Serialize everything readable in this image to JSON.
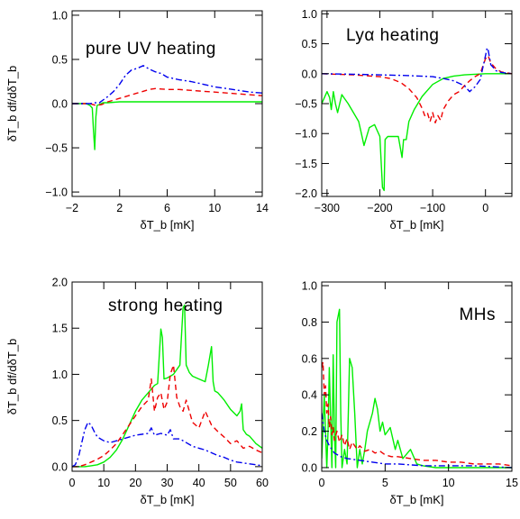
{
  "colors": {
    "green": "#00ee00",
    "red": "#ee0000",
    "blue": "#0000ee",
    "axis": "#000000"
  },
  "chart_data": [
    {
      "type": "line",
      "title": "pure UV heating",
      "xlabel": "δT_b [mK]",
      "ylabel": "δT_b df/dδT_b",
      "xlim": [
        -2,
        14
      ],
      "ylim": [
        -1.05,
        1.05
      ],
      "xticks": [
        -2,
        2,
        6,
        10,
        14
      ],
      "xtick_labels": [
        "−2",
        "2",
        "6",
        "10",
        "14"
      ],
      "yticks": [
        -1.0,
        -0.5,
        0.0,
        0.5,
        1.0
      ],
      "ytick_labels": [
        "−1.0",
        "−0.5",
        "0.0",
        "0.5",
        "1.0"
      ],
      "series": [
        {
          "color": "green",
          "style": "solid",
          "x": [
            -2,
            -0.8,
            -0.5,
            -0.3,
            -0.2,
            -0.1,
            0,
            0.1,
            0.3,
            0.6,
            1,
            2,
            4,
            8,
            14
          ],
          "y": [
            0,
            0,
            -0.02,
            -0.05,
            -0.3,
            -0.52,
            -0.15,
            -0.02,
            -0.01,
            0.01,
            0.01,
            0.02,
            0.02,
            0.02,
            0.02
          ]
        },
        {
          "color": "red",
          "style": "dashed",
          "x": [
            -2,
            -0.5,
            0,
            0.5,
            1,
            1.5,
            2,
            2.5,
            3,
            3.5,
            4,
            4.5,
            5,
            6,
            7,
            8,
            9,
            10,
            11,
            12,
            13,
            14
          ],
          "y": [
            0,
            0,
            -0.02,
            -0.01,
            0.02,
            0.04,
            0.06,
            0.08,
            0.1,
            0.12,
            0.14,
            0.16,
            0.17,
            0.16,
            0.16,
            0.15,
            0.14,
            0.13,
            0.12,
            0.11,
            0.1,
            0.09
          ]
        },
        {
          "color": "blue",
          "style": "dashdot",
          "x": [
            -2,
            -0.5,
            0,
            0.3,
            0.6,
            1,
            1.5,
            2,
            2.5,
            3,
            3.5,
            4,
            4.5,
            5,
            5.5,
            6,
            7,
            8,
            9,
            10,
            11,
            12,
            13,
            14
          ],
          "y": [
            0,
            0,
            0.01,
            0.01,
            0.04,
            0.08,
            0.14,
            0.22,
            0.32,
            0.38,
            0.4,
            0.43,
            0.39,
            0.36,
            0.34,
            0.3,
            0.27,
            0.25,
            0.22,
            0.19,
            0.17,
            0.15,
            0.13,
            0.12
          ]
        }
      ]
    },
    {
      "type": "line",
      "title": "Lyα heating",
      "xlabel": "δT_b [mK]",
      "ylabel": "",
      "xlim": [
        -310,
        50
      ],
      "ylim": [
        -2.05,
        1.05
      ],
      "xticks": [
        -300,
        -200,
        -100,
        0
      ],
      "xtick_labels": [
        "−300",
        "−200",
        "−100",
        "0"
      ],
      "yticks": [
        -2.0,
        -1.5,
        -1.0,
        -0.5,
        0.0,
        0.5,
        1.0
      ],
      "ytick_labels": [
        "−2.0",
        "−1.5",
        "−1.0",
        "−0.5",
        "0.0",
        "0.5",
        "1.0"
      ],
      "series": [
        {
          "color": "green",
          "style": "solid",
          "x": [
            -310,
            -300,
            -295,
            -292,
            -288,
            -284,
            -280,
            -272,
            -268,
            -260,
            -250,
            -240,
            -235,
            -230,
            -220,
            -210,
            -200,
            -195,
            -192,
            -190,
            -185,
            -175,
            -165,
            -158,
            -155,
            -150,
            -145,
            -135,
            -120,
            -100,
            -80,
            -60,
            -40,
            -20,
            0,
            20,
            50
          ],
          "y": [
            -0.5,
            -0.3,
            -0.4,
            -0.6,
            -0.3,
            -0.5,
            -0.65,
            -0.35,
            -0.4,
            -0.5,
            -0.65,
            -0.8,
            -1.0,
            -1.2,
            -0.9,
            -0.85,
            -1.05,
            -1.9,
            -1.95,
            -1.1,
            -1.05,
            -1.05,
            -1.05,
            -1.4,
            -1.1,
            -1.1,
            -0.8,
            -0.6,
            -0.38,
            -0.18,
            -0.08,
            -0.04,
            -0.02,
            -0.01,
            0,
            0,
            0
          ]
        },
        {
          "color": "red",
          "style": "dashed",
          "x": [
            -310,
            -250,
            -200,
            -180,
            -160,
            -145,
            -130,
            -120,
            -115,
            -110,
            -105,
            -100,
            -95,
            -90,
            -85,
            -80,
            -70,
            -60,
            -50,
            -40,
            -30,
            -20,
            -10,
            0,
            5,
            10,
            20,
            30,
            50
          ],
          "y": [
            0,
            -0.02,
            -0.05,
            -0.08,
            -0.15,
            -0.25,
            -0.4,
            -0.58,
            -0.7,
            -0.65,
            -0.8,
            -0.65,
            -0.82,
            -0.7,
            -0.78,
            -0.6,
            -0.45,
            -0.35,
            -0.3,
            -0.2,
            -0.12,
            -0.05,
            0,
            0.25,
            0.3,
            0.18,
            0.08,
            0.03,
            0
          ]
        },
        {
          "color": "blue",
          "style": "dashdot",
          "x": [
            -310,
            -250,
            -200,
            -150,
            -100,
            -80,
            -60,
            -40,
            -30,
            -20,
            -10,
            0,
            3,
            5,
            8,
            10,
            15,
            20,
            30,
            40,
            50
          ],
          "y": [
            0,
            -0.01,
            -0.02,
            -0.03,
            -0.05,
            -0.08,
            -0.12,
            -0.2,
            -0.3,
            -0.22,
            -0.1,
            0.3,
            0.43,
            0.4,
            0.25,
            0.15,
            0.1,
            0.05,
            0.02,
            0.01,
            0
          ]
        }
      ]
    },
    {
      "type": "line",
      "title": "strong heating",
      "xlabel": "δT_b [mK]",
      "ylabel": "δT_b df/dδT_b",
      "xlim": [
        0,
        60
      ],
      "ylim": [
        -0.05,
        2.0
      ],
      "xticks": [
        0,
        10,
        20,
        30,
        40,
        50,
        60
      ],
      "xtick_labels": [
        "0",
        "10",
        "20",
        "30",
        "40",
        "50",
        "60"
      ],
      "yticks": [
        0.0,
        0.5,
        1.0,
        1.5,
        2.0
      ],
      "ytick_labels": [
        "0.0",
        "0.5",
        "1.0",
        "1.5",
        "2.0"
      ],
      "series": [
        {
          "color": "green",
          "style": "solid",
          "x": [
            0,
            2,
            4,
            6,
            8,
            10,
            12,
            14,
            16,
            18,
            20,
            22,
            24,
            26,
            27,
            28,
            28.5,
            29,
            30,
            31,
            32,
            34,
            35,
            35.5,
            36,
            37,
            38,
            40,
            42,
            43,
            44,
            44.5,
            45,
            46,
            48,
            50,
            52,
            53,
            53.5,
            54,
            55,
            56,
            58,
            60
          ],
          "y": [
            0,
            0,
            0,
            0.01,
            0.02,
            0.05,
            0.1,
            0.18,
            0.3,
            0.45,
            0.6,
            0.72,
            0.8,
            0.88,
            0.9,
            1.49,
            1.4,
            0.95,
            0.96,
            0.98,
            1.0,
            1.1,
            1.72,
            1.75,
            1.1,
            1.02,
            0.98,
            0.95,
            0.92,
            1.1,
            1.3,
            0.92,
            0.82,
            0.8,
            0.72,
            0.62,
            0.55,
            0.6,
            0.68,
            0.4,
            0.35,
            0.33,
            0.25,
            0.2
          ]
        },
        {
          "color": "red",
          "style": "dashed",
          "x": [
            0,
            2,
            4,
            6,
            8,
            10,
            12,
            14,
            16,
            18,
            20,
            22,
            24,
            25,
            26,
            27,
            28,
            29,
            30,
            31,
            32,
            33,
            34,
            35,
            36,
            38,
            40,
            42,
            44,
            46,
            48,
            50,
            52,
            54,
            56,
            58,
            60
          ],
          "y": [
            0,
            0,
            0.02,
            0.05,
            0.08,
            0.12,
            0.18,
            0.25,
            0.35,
            0.45,
            0.55,
            0.65,
            0.72,
            0.95,
            0.6,
            0.75,
            0.8,
            0.62,
            0.7,
            1.0,
            1.1,
            0.75,
            0.65,
            0.6,
            0.72,
            0.48,
            0.42,
            0.6,
            0.45,
            0.38,
            0.32,
            0.25,
            0.28,
            0.2,
            0.22,
            0.18,
            0.15
          ]
        },
        {
          "color": "blue",
          "style": "dashdot",
          "x": [
            0,
            1,
            2,
            3,
            4,
            5,
            6,
            7,
            8,
            10,
            12,
            14,
            16,
            18,
            20,
            22,
            24,
            25,
            26,
            28,
            30,
            31,
            32,
            34,
            36,
            38,
            40,
            42,
            44,
            46,
            48,
            50,
            52,
            54,
            56,
            58,
            60
          ],
          "y": [
            0,
            0.02,
            0.1,
            0.25,
            0.4,
            0.48,
            0.45,
            0.38,
            0.32,
            0.28,
            0.26,
            0.28,
            0.3,
            0.32,
            0.34,
            0.35,
            0.36,
            0.42,
            0.34,
            0.36,
            0.34,
            0.4,
            0.3,
            0.3,
            0.26,
            0.22,
            0.2,
            0.18,
            0.15,
            0.12,
            0.1,
            0.07,
            0.05,
            0.04,
            0.03,
            0.02,
            0.01
          ]
        }
      ]
    },
    {
      "type": "line",
      "title": "MHs",
      "xlabel": "δT_b [mK]",
      "ylabel": "",
      "xlim": [
        0,
        15
      ],
      "ylim": [
        -0.02,
        1.02
      ],
      "xticks": [
        0,
        5,
        10,
        15
      ],
      "xtick_labels": [
        "0",
        "5",
        "10",
        "15"
      ],
      "yticks": [
        0.0,
        0.2,
        0.4,
        0.6,
        0.8,
        1.0
      ],
      "ytick_labels": [
        "0.0",
        "0.2",
        "0.4",
        "0.6",
        "0.8",
        "1.0"
      ],
      "series": [
        {
          "color": "green",
          "style": "solid",
          "x": [
            0,
            0.2,
            0.4,
            0.5,
            0.6,
            0.8,
            0.9,
            1.0,
            1.1,
            1.2,
            1.4,
            1.5,
            1.6,
            1.8,
            2.0,
            2.1,
            2.2,
            2.4,
            2.6,
            2.8,
            3.0,
            3.2,
            3.4,
            3.6,
            4.0,
            4.2,
            4.4,
            4.6,
            4.8,
            5.0,
            5.4,
            5.8,
            6.0,
            6.4,
            7.0,
            7.5,
            8,
            9,
            10,
            11,
            12,
            15
          ],
          "y": [
            0.05,
            0.4,
            0,
            0.2,
            0.55,
            0,
            0.62,
            0.2,
            0,
            0.8,
            0.87,
            0.3,
            0,
            0.1,
            0.02,
            0.3,
            0.6,
            0.55,
            0.3,
            0,
            0.1,
            0.02,
            0.1,
            0.2,
            0.3,
            0.38,
            0.32,
            0.2,
            0.25,
            0.18,
            0.22,
            0.1,
            0.15,
            0.05,
            0.1,
            0.02,
            0.01,
            0,
            0,
            0,
            0,
            0
          ]
        },
        {
          "color": "red",
          "style": "dashed",
          "x": [
            0,
            0.1,
            0.2,
            0.3,
            0.4,
            0.5,
            0.6,
            0.7,
            0.8,
            0.9,
            1.0,
            1.2,
            1.4,
            1.6,
            1.8,
            2.0,
            2.2,
            2.4,
            2.8,
            3.0,
            3.4,
            3.8,
            4.2,
            4.6,
            5.0,
            5.5,
            6,
            7,
            8,
            9,
            10,
            11,
            12,
            13,
            14,
            15
          ],
          "y": [
            0.55,
            0.58,
            0.4,
            0.45,
            0.3,
            0.35,
            0.22,
            0.28,
            0.18,
            0.22,
            0.15,
            0.2,
            0.14,
            0.18,
            0.12,
            0.16,
            0.1,
            0.14,
            0.1,
            0.12,
            0.09,
            0.1,
            0.08,
            0.09,
            0.07,
            0.06,
            0.06,
            0.05,
            0.04,
            0.04,
            0.03,
            0.03,
            0.02,
            0.02,
            0.02,
            0.01
          ]
        },
        {
          "color": "blue",
          "style": "dashdot",
          "x": [
            0,
            0.2,
            0.4,
            0.6,
            0.8,
            1.0,
            1.5,
            2.0,
            3,
            4,
            5,
            6,
            8,
            10,
            12,
            15
          ],
          "y": [
            0.3,
            0.2,
            0.15,
            0.12,
            0.1,
            0.08,
            0.06,
            0.05,
            0.04,
            0.03,
            0.02,
            0.02,
            0.01,
            0.01,
            0.01,
            0
          ]
        }
      ]
    }
  ]
}
